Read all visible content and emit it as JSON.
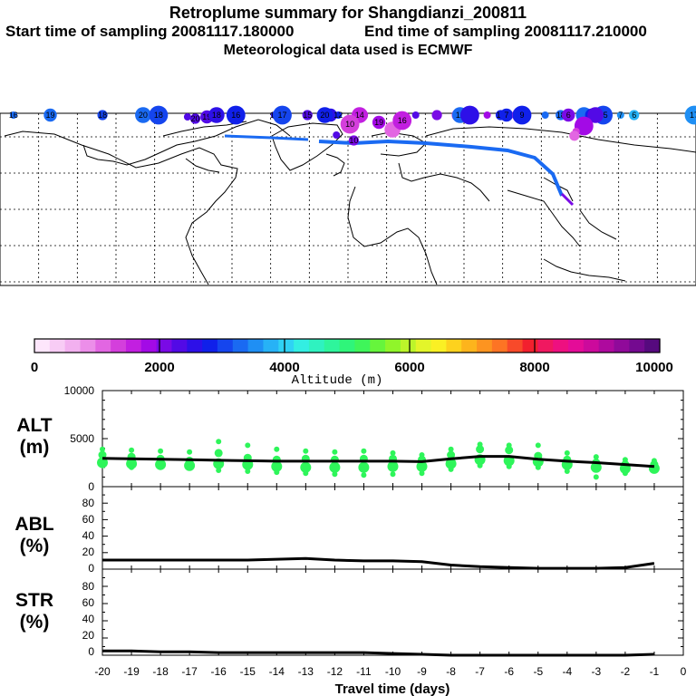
{
  "header": {
    "title": "Retroplume summary for Shangdianzi_200811",
    "start_label": "Start time of sampling 20081117.180000",
    "end_label": "End time of sampling 20081117.210000",
    "met_label": "Meteorological data used is ECMWF"
  },
  "colorbar": {
    "ticks": [
      "0",
      "2000",
      "4000",
      "6000",
      "8000",
      "10000"
    ],
    "label": "Altitude (m)",
    "colors": [
      "#fde6fb",
      "#f8ccf5",
      "#f2b0ef",
      "#ec8ee9",
      "#e266e2",
      "#d43fdc",
      "#c21fe0",
      "#a30ae6",
      "#7a0ae6",
      "#520ae6",
      "#2d10e8",
      "#1020ea",
      "#1545ee",
      "#1a6af2",
      "#1f8ff4",
      "#27b2f6",
      "#2fd2f4",
      "#33eee2",
      "#2ff2c0",
      "#2ef59c",
      "#2ff57a",
      "#3ff55a",
      "#66f53c",
      "#90f52a",
      "#bcf52a",
      "#e3f52a",
      "#faf024",
      "#fdd21e",
      "#fdb41c",
      "#fd9420",
      "#fd7424",
      "#f84a2a",
      "#f2202e",
      "#f01860",
      "#ee1080",
      "#e40c98",
      "#cc0a9c",
      "#ae0a9e",
      "#900a9a",
      "#740a90",
      "#560a7e"
    ]
  },
  "map": {
    "points": [
      {
        "lon": -173,
        "lat": 67,
        "label": "16",
        "alt": 3200
      },
      {
        "lon": -127,
        "lat": 70,
        "label": "18",
        "alt": 3000
      },
      {
        "lon": -154,
        "lat": 59,
        "label": "19",
        "alt": 3300
      },
      {
        "lon": -106,
        "lat": 58,
        "label": "20",
        "alt": 3300
      },
      {
        "lon": -98,
        "lat": 59,
        "label": "18",
        "alt": 3100
      },
      {
        "lon": -83,
        "lat": 51,
        "label": "",
        "alt": 2300
      },
      {
        "lon": -79,
        "lat": 50,
        "label": "20",
        "alt": 2200
      },
      {
        "lon": -73,
        "lat": 51,
        "label": "19",
        "alt": 2400
      },
      {
        "lon": -68,
        "lat": 52,
        "label": "18",
        "alt": 2600
      },
      {
        "lon": -58,
        "lat": 54,
        "label": "16",
        "alt": 2900
      },
      {
        "lon": -38,
        "lat": 56,
        "label": "16",
        "alt": 2500
      },
      {
        "lon": -21,
        "lat": 63,
        "label": "15",
        "alt": 2300
      },
      {
        "lon": -9,
        "lat": 67,
        "label": "",
        "alt": 2500
      },
      {
        "lon": -12,
        "lat": 72,
        "label": "20",
        "alt": 2700
      },
      {
        "lon": -34,
        "lat": 68,
        "label": "17",
        "alt": 3000
      },
      {
        "lon": -5,
        "lat": 72,
        "label": "12",
        "alt": 2900
      },
      {
        "lon": 5,
        "lat": 60,
        "label": "10",
        "alt": 1500
      },
      {
        "lon": 7,
        "lat": 56,
        "label": "",
        "alt": 1600
      },
      {
        "lon": 6,
        "lat": 53,
        "label": "14",
        "alt": 1700
      },
      {
        "lon": 1,
        "lat": 47,
        "label": "10",
        "alt": 1300
      },
      {
        "lon": -6,
        "lat": 41,
        "label": "",
        "alt": 2200
      },
      {
        "lon": 3,
        "lat": 38,
        "label": "10",
        "alt": 2000
      },
      {
        "lon": 16,
        "lat": 48,
        "label": "19",
        "alt": 1800
      },
      {
        "lon": 23,
        "lat": 44,
        "label": "",
        "alt": 1200
      },
      {
        "lon": 28,
        "lat": 49,
        "label": "16",
        "alt": 1500
      },
      {
        "lon": 35,
        "lat": 71,
        "label": "",
        "alt": 2300
      },
      {
        "lon": 46,
        "lat": 66,
        "label": "",
        "alt": 2100
      },
      {
        "lon": 57,
        "lat": 57,
        "label": "12",
        "alt": 1400
      },
      {
        "lon": 58,
        "lat": 80,
        "label": "12",
        "alt": 3200
      },
      {
        "lon": 63,
        "lat": 70,
        "label": "",
        "alt": 2600
      },
      {
        "lon": 72,
        "lat": 61,
        "label": "",
        "alt": 1800
      },
      {
        "lon": 79,
        "lat": 67,
        "label": "10",
        "alt": 2700
      },
      {
        "lon": 82,
        "lat": 74,
        "label": "7",
        "alt": 2900
      },
      {
        "lon": 89,
        "lat": 61,
        "label": "8",
        "alt": 1600
      },
      {
        "lon": 90,
        "lat": 53,
        "label": "9",
        "alt": 2700
      },
      {
        "lon": 102,
        "lat": 76,
        "label": "",
        "alt": 3300
      },
      {
        "lon": 110,
        "lat": 82,
        "label": "18",
        "alt": 3400
      },
      {
        "lon": 114,
        "lat": 62,
        "label": "6",
        "alt": 2100
      },
      {
        "lon": 122,
        "lat": 68,
        "label": "",
        "alt": 3200
      },
      {
        "lon": 132,
        "lat": 70,
        "label": "15",
        "alt": 3100
      },
      {
        "lon": 141,
        "lat": 64,
        "label": "7",
        "alt": 3600
      },
      {
        "lon": 148,
        "lat": 64,
        "label": "6",
        "alt": 3700
      },
      {
        "lon": 126,
        "lat": 57,
        "label": "3",
        "alt": 2900
      },
      {
        "lon": 128,
        "lat": 52,
        "label": "",
        "alt": 2400
      },
      {
        "lon": 122,
        "lat": 46,
        "label": "",
        "alt": 1800
      },
      {
        "lon": 118,
        "lat": 43,
        "label": "",
        "alt": 1400
      },
      {
        "lon": 117.1,
        "lat": 40.6,
        "label": "",
        "alt": 1200
      },
      {
        "lon": 182,
        "lat": 86,
        "label": "13",
        "alt": 3400
      },
      {
        "lon": 198,
        "lat": 80,
        "label": "14",
        "alt": 3500
      },
      {
        "lon": 182,
        "lat": 72,
        "label": "15",
        "alt": 3500
      },
      {
        "lon": 186,
        "lat": 70,
        "label": "20",
        "alt": 3400
      },
      {
        "lon": 196,
        "lat": 72,
        "label": "17",
        "alt": 3500
      }
    ]
  },
  "panels": {
    "alt": {
      "title_line1": "ALT",
      "title_line2": "(m)",
      "ticks": [
        "10000",
        "5000",
        "0"
      ]
    },
    "abl": {
      "title_line1": "ABL",
      "title_line2": "(%)",
      "ticks": [
        "80",
        "60",
        "40",
        "20",
        "0"
      ]
    },
    "str": {
      "title_line1": "STR",
      "title_line2": "(%)",
      "ticks": [
        "80",
        "60",
        "40",
        "20",
        "0"
      ]
    }
  },
  "xaxis": {
    "ticks": [
      "-20",
      "-19",
      "-18",
      "-17",
      "-16",
      "-15",
      "-14",
      "-13",
      "-12",
      "-11",
      "-10",
      "-9",
      "-8",
      "-7",
      "-6",
      "-5",
      "-4",
      "-3",
      "-2",
      "-1",
      "0"
    ],
    "label": "Travel time (days)"
  },
  "chart_data": [
    {
      "type": "line",
      "title": "ALT (m)",
      "xlabel": "Travel time (days)",
      "ylim": [
        0,
        10000
      ],
      "x": [
        -20,
        -19,
        -18,
        -17,
        -16,
        -15,
        -14,
        -13,
        -12,
        -11,
        -10,
        -9,
        -8,
        -7,
        -6,
        -5,
        -4,
        -3,
        -2,
        -1
      ],
      "series": [
        {
          "name": "mean altitude",
          "values": [
            2950,
            2900,
            2850,
            2800,
            2750,
            2700,
            2650,
            2650,
            2650,
            2650,
            2650,
            2600,
            2900,
            3150,
            3150,
            2850,
            2650,
            2500,
            2300,
            2100
          ]
        },
        {
          "name": "plume altitude points",
          "values": [
            [
              3900,
              3300,
              2500,
              2200
            ],
            [
              3800,
              3100,
              2400,
              2000
            ],
            [
              3700,
              2900,
              2300,
              2000
            ],
            [
              3600,
              2700,
              2200,
              2000
            ],
            [
              4700,
              3500,
              2400,
              1700
            ],
            [
              4300,
              3000,
              2300,
              1600
            ],
            [
              3900,
              2800,
              2100,
              1500
            ],
            [
              3700,
              2900,
              2000,
              1400
            ],
            [
              3600,
              2800,
              2000,
              1300
            ],
            [
              3700,
              2900,
              2000,
              1200
            ],
            [
              3500,
              2900,
              2100,
              1300
            ],
            [
              3300,
              2800,
              2100,
              1400
            ],
            [
              3900,
              3300,
              2400,
              1800
            ],
            [
              4400,
              3900,
              2800,
              2200
            ],
            [
              4300,
              3800,
              2700,
              2100
            ],
            [
              4300,
              3200,
              2600,
              2000
            ],
            [
              3500,
              2800,
              2300,
              1600
            ],
            [
              3100,
              2500,
              2000,
              1000
            ],
            [
              2800,
              2300,
              1900,
              1400
            ],
            [
              2700,
              2300,
              1900,
              1800
            ]
          ]
        }
      ]
    },
    {
      "type": "line",
      "title": "ABL (%)",
      "ylim": [
        0,
        100
      ],
      "x": [
        -20,
        -19,
        -18,
        -17,
        -16,
        -15,
        -14,
        -13,
        -12,
        -11,
        -10,
        -9,
        -8,
        -7,
        -6,
        -5,
        -4,
        -3,
        -2,
        -1
      ],
      "series": [
        {
          "name": "ABL",
          "values": [
            11,
            11,
            11,
            11,
            11,
            11,
            12,
            13,
            11,
            10,
            10,
            9,
            5,
            3,
            2,
            1,
            1,
            1,
            2,
            7
          ]
        }
      ]
    },
    {
      "type": "line",
      "title": "STR (%)",
      "ylim": [
        0,
        100
      ],
      "x": [
        -20,
        -19,
        -18,
        -17,
        -16,
        -15,
        -14,
        -13,
        -12,
        -11,
        -10,
        -9,
        -8,
        -7,
        -6,
        -5,
        -4,
        -3,
        -2,
        -1
      ],
      "series": [
        {
          "name": "STR",
          "values": [
            5,
            5,
            4,
            4,
            3,
            3,
            3,
            3,
            3,
            3,
            2,
            1,
            0,
            0,
            0,
            0,
            0,
            0,
            0,
            1
          ]
        }
      ]
    }
  ]
}
